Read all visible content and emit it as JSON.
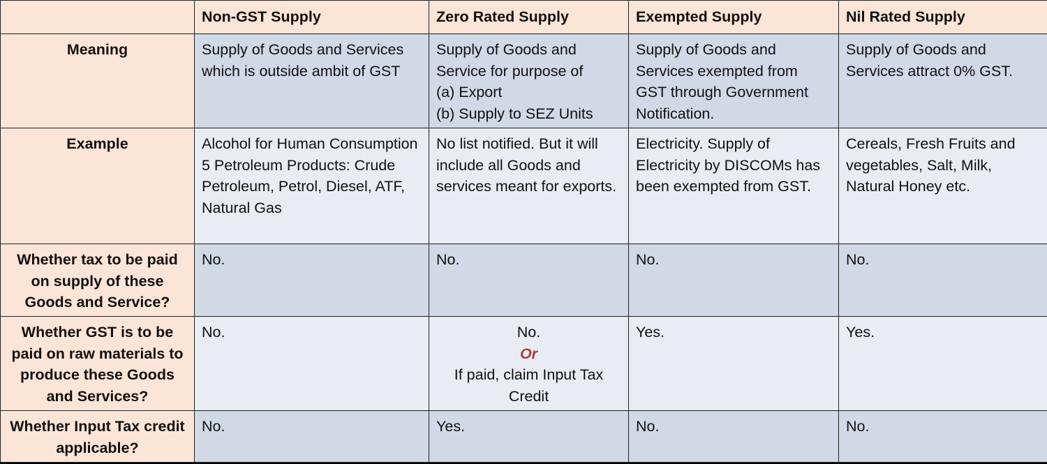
{
  "table": {
    "columns": [
      "Non-GST Supply",
      "Zero Rated Supply",
      "Exempted Supply",
      "Nil Rated Supply"
    ],
    "rows": [
      {
        "label": "Meaning",
        "cells": [
          [
            "Supply of Goods and Services which is outside ambit of GST"
          ],
          [
            "Supply of Goods and Service for purpose of",
            "(a) Export",
            "(b) Supply to SEZ Units"
          ],
          [
            "Supply of Goods and Services exempted from GST through Government Notification."
          ],
          [
            "Supply of Goods and Services attract 0% GST."
          ]
        ]
      },
      {
        "label": "Example",
        "cells": [
          [
            "Alcohol for Human Consumption",
            "5 Petroleum Products: Crude Petroleum, Petrol, Diesel, ATF, Natural Gas"
          ],
          [
            "No list notified. But it will include all Goods and services meant for exports."
          ],
          [
            "Electricity. Supply of Electricity by DISCOMs has been exempted from GST."
          ],
          [
            "Cereals, Fresh Fruits and vegetables, Salt, Milk, Natural Honey etc."
          ]
        ]
      },
      {
        "label": "Whether tax to be paid on supply of these Goods and Service?",
        "cells": [
          [
            "No."
          ],
          [
            "No."
          ],
          [
            "No."
          ],
          [
            "No."
          ]
        ]
      },
      {
        "label": "Whether GST is to be paid on raw materials to produce these Goods and Services?",
        "cells": [
          [
            "No."
          ],
          [
            "No.",
            "Or",
            "If paid, claim Input Tax Credit"
          ],
          [
            "Yes."
          ],
          [
            "Yes."
          ]
        ]
      },
      {
        "label": "Whether Input Tax credit applicable?",
        "cells": [
          [
            "No."
          ],
          [
            "Yes."
          ],
          [
            "No."
          ],
          [
            "No."
          ]
        ]
      }
    ]
  }
}
